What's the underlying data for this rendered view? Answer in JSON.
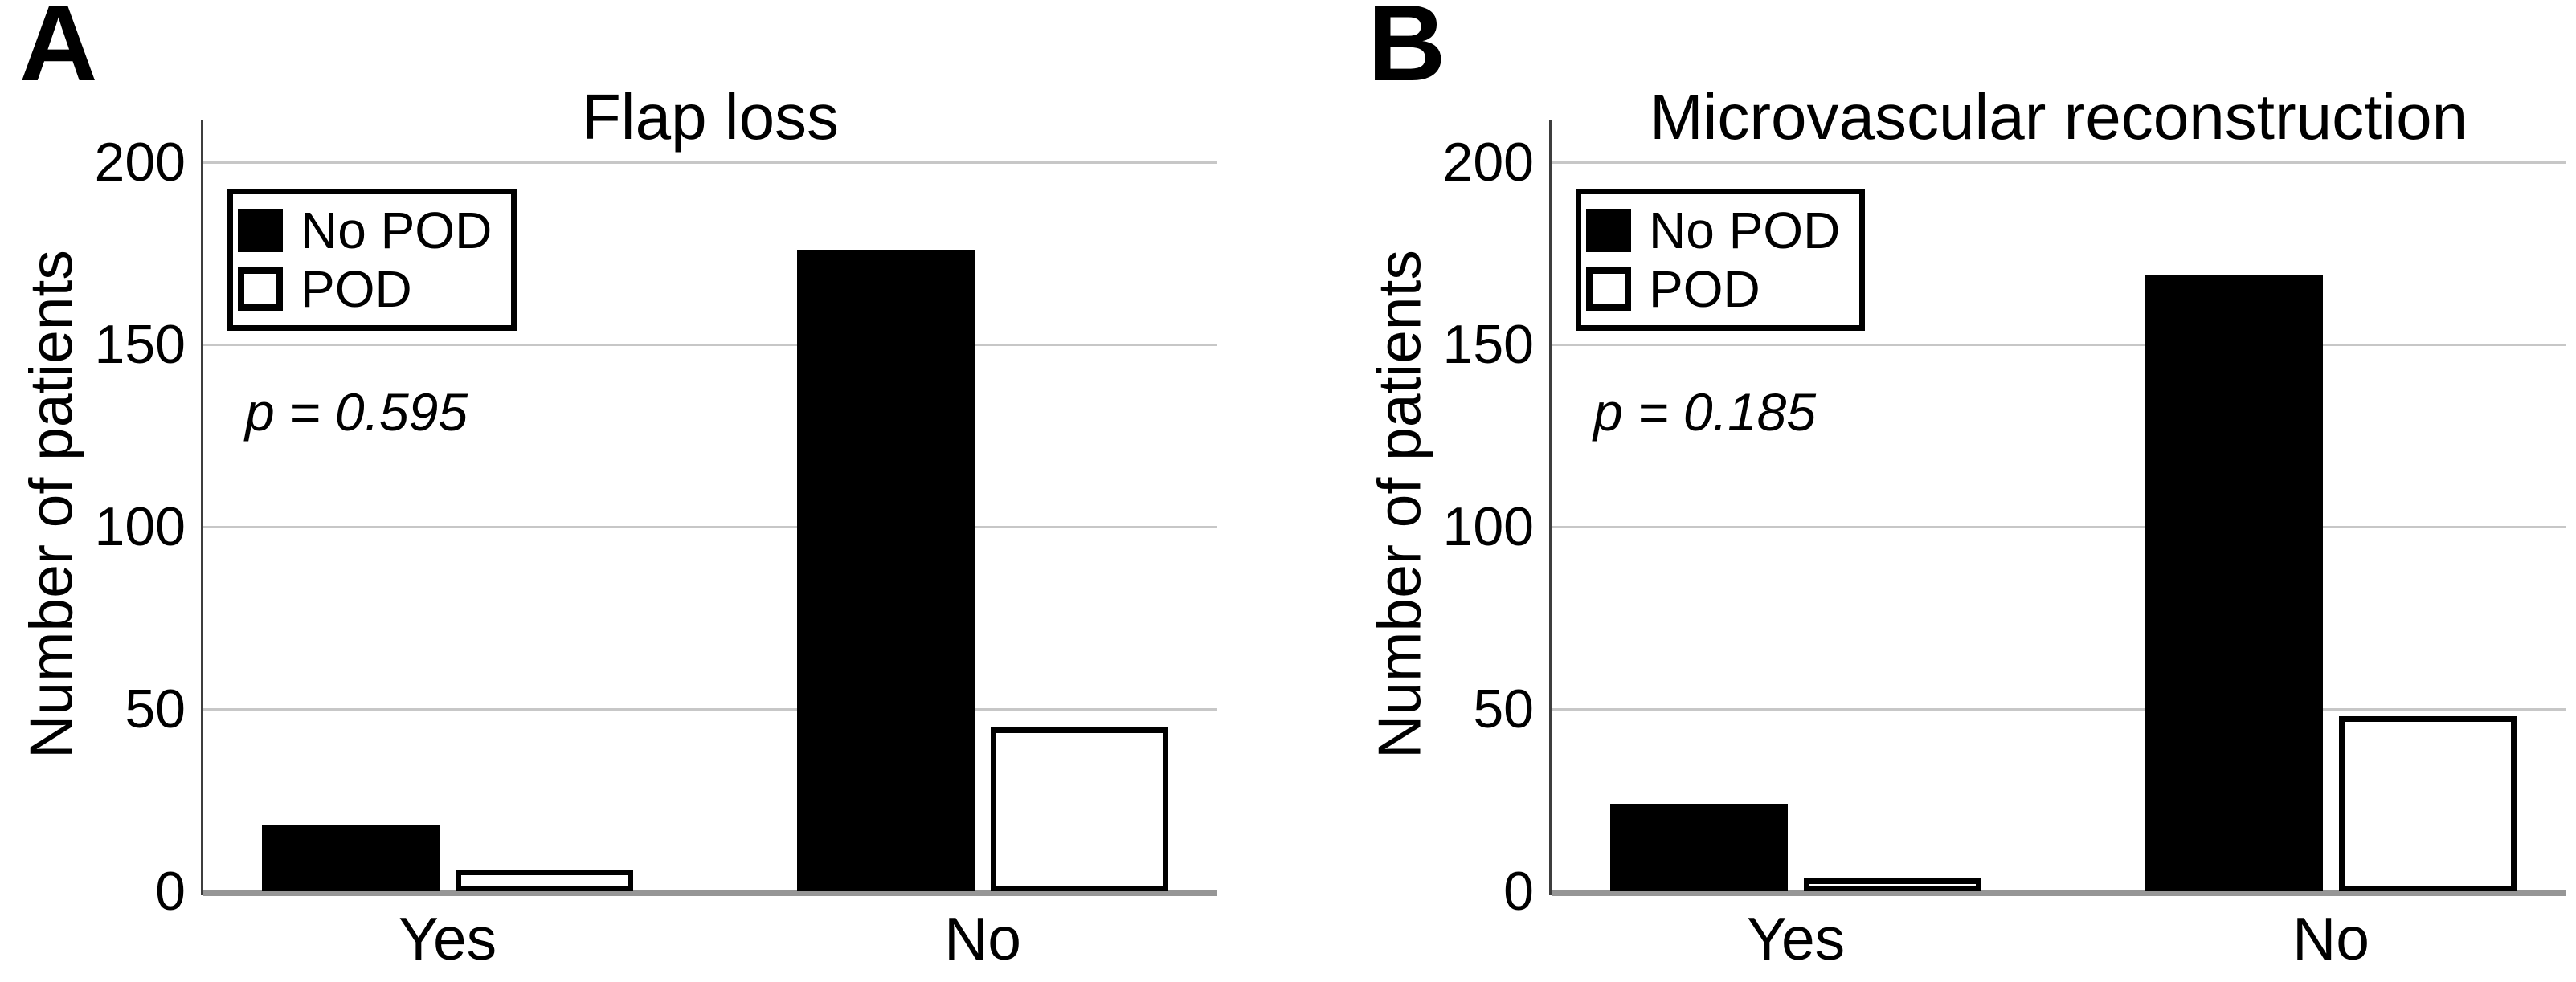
{
  "figure": {
    "background": "#ffffff",
    "colors": {
      "bar_black": "#000000",
      "bar_white": "#ffffff",
      "gridline": "#c7c7c7",
      "baseline": "#969696",
      "axis": "#3d3d3d",
      "text": "#000000"
    },
    "legend": {
      "items": [
        {
          "label": "No POD",
          "swatch": "black-filled-square"
        },
        {
          "label": "POD",
          "swatch": "white-outlined-square"
        }
      ]
    }
  },
  "chart_data": [
    {
      "type": "bar",
      "panel_letter": "A",
      "title": "Flap loss",
      "annotation": "p = 0.595",
      "ylabel": "Number of patients",
      "xlabel": "",
      "categories": [
        "Yes",
        "No"
      ],
      "series": [
        {
          "name": "No POD",
          "fill": "#000000",
          "values": [
            18,
            176
          ]
        },
        {
          "name": "POD",
          "fill": "#ffffff",
          "values": [
            6,
            45
          ]
        }
      ],
      "y_ticks": [
        0,
        50,
        100,
        150,
        200
      ],
      "ylim": [
        0,
        212
      ],
      "grid": "horizontal",
      "legend_position": "upper-left-inside"
    },
    {
      "type": "bar",
      "panel_letter": "B",
      "title": "Microvascular reconstruction",
      "annotation": "p = 0.185",
      "ylabel": "Number of patients",
      "xlabel": "",
      "categories": [
        "Yes",
        "No"
      ],
      "series": [
        {
          "name": "No POD",
          "fill": "#000000",
          "values": [
            24,
            169
          ]
        },
        {
          "name": "POD",
          "fill": "#ffffff",
          "values": [
            3,
            48
          ]
        }
      ],
      "y_ticks": [
        0,
        50,
        100,
        150,
        200
      ],
      "ylim": [
        0,
        212
      ],
      "grid": "horizontal",
      "legend_position": "upper-left-inside"
    }
  ]
}
